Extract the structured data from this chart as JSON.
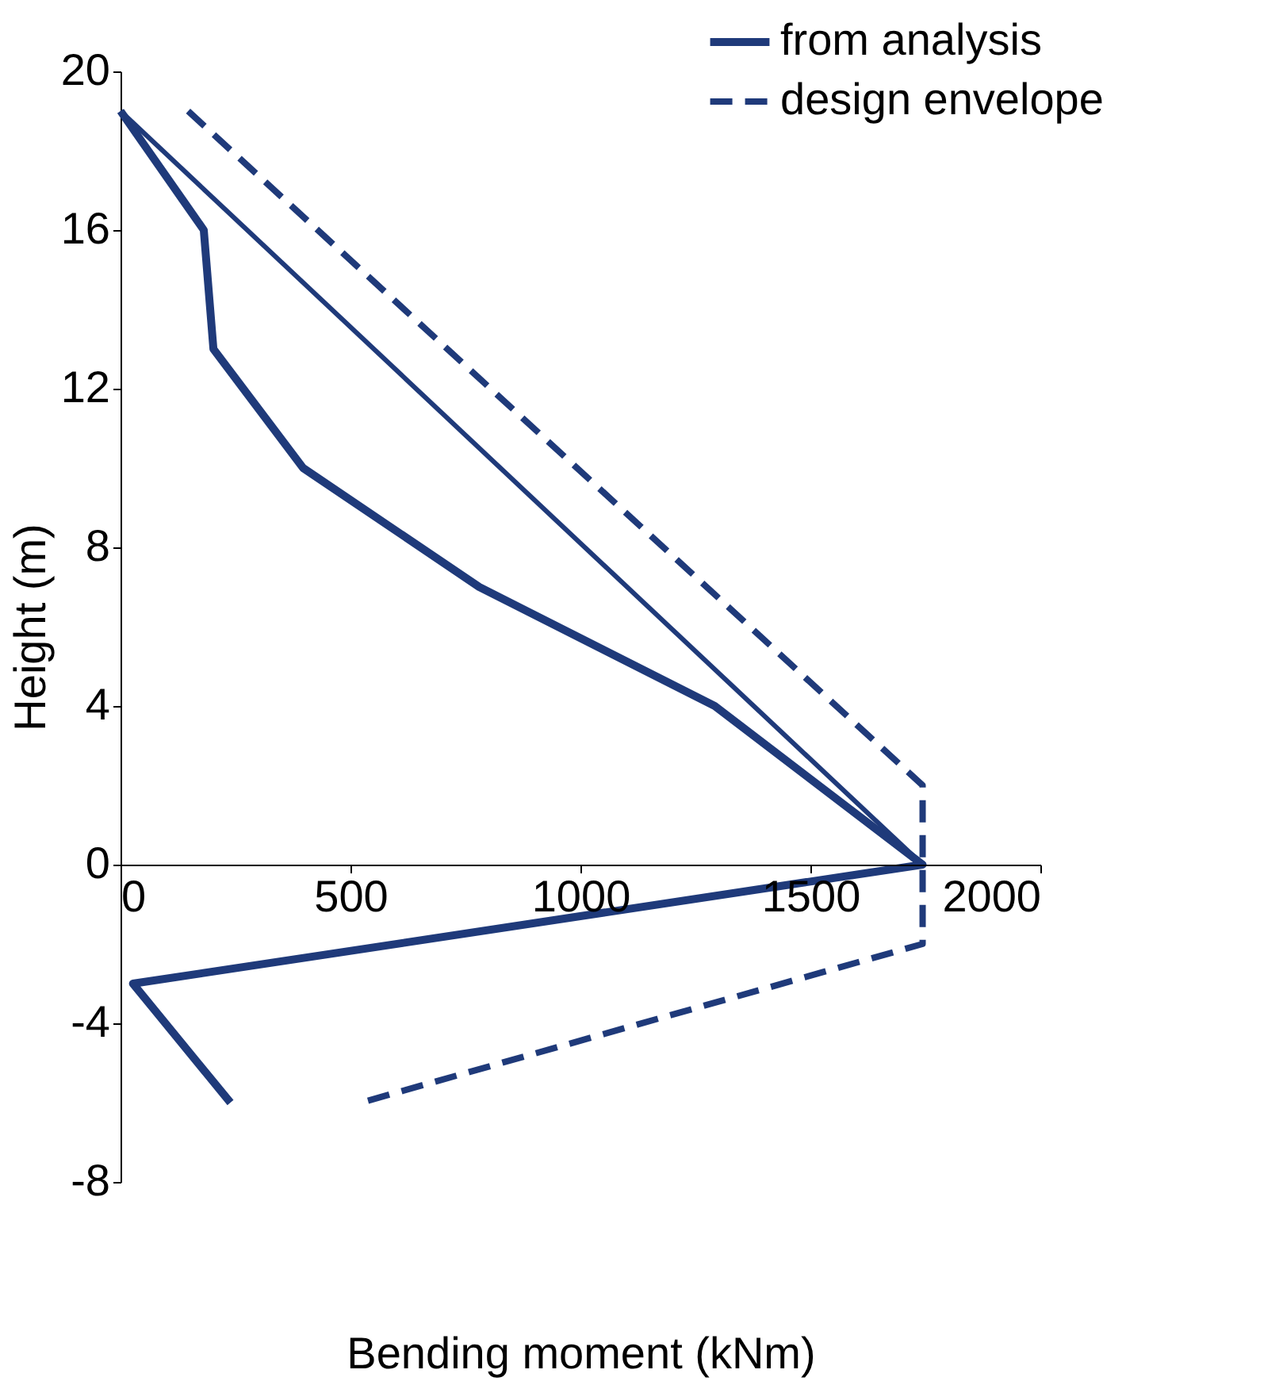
{
  "chart_data": {
    "type": "line",
    "xlabel": "Bending moment (kNm)",
    "ylabel": "Height (m)",
    "xlim": [
      0,
      2000
    ],
    "xticks": [
      0,
      500,
      1000,
      1500,
      2000
    ],
    "ylim": [
      -8,
      20
    ],
    "yticks": [
      -8,
      -4,
      0,
      4,
      8,
      12,
      16,
      20
    ],
    "grid": false,
    "legend": "top right",
    "marker": "none",
    "series": [
      {
        "name": "from analysis",
        "color": "#1f3a7a",
        "line_style": "solid",
        "x": [
          0,
          181,
          202,
          397,
          780,
          1292,
          1744,
          27,
          239
        ],
        "values": [
          19,
          16,
          13,
          10,
          7,
          4,
          0,
          -3,
          -6
        ]
      },
      {
        "name": "design envelope",
        "color": "#1f3a7a",
        "line_style": "dashed",
        "x": [
          147,
          1744,
          1744,
          523
        ],
        "values": [
          19,
          2,
          -2,
          -6
        ]
      },
      {
        "color": "#1f3a7a",
        "line_style": "solid",
        "x": [
          0,
          1744
        ],
        "values": [
          19,
          0
        ]
      }
    ]
  }
}
